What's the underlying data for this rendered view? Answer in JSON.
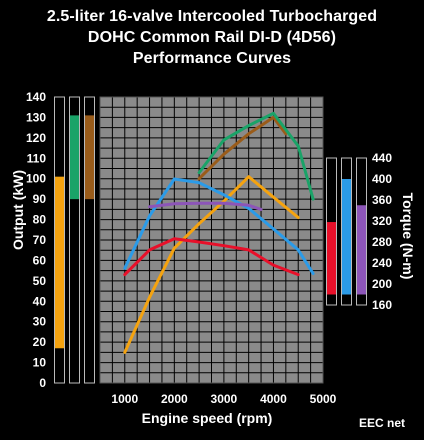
{
  "title": {
    "line1": "2.5-liter 16-valve Intercooled Turbocharged",
    "line2": "DOHC Common Rail DI-D (4D56)",
    "line3": "Performance Curves"
  },
  "note": "EEC net",
  "chart_data": {
    "type": "line",
    "title": "2.5-liter 16-valve Intercooled Turbocharged DOHC Common Rail DI-D (4D56) Performance Curves",
    "xlabel": "Engine speed (rpm)",
    "ylabel_left": "Output (kW)",
    "ylabel_right": "Torque (N-m)",
    "x_ticks": [
      1000,
      2000,
      3000,
      4000,
      5000
    ],
    "xlim": [
      500,
      5000
    ],
    "y_left_ticks": [
      0,
      10,
      20,
      30,
      40,
      50,
      60,
      70,
      80,
      90,
      100,
      110,
      120,
      130,
      140
    ],
    "ylim_left": [
      0,
      140
    ],
    "y_right_ticks": [
      160,
      200,
      240,
      280,
      320,
      360,
      400,
      440
    ],
    "ylim_right": [
      160,
      440
    ],
    "grid": true,
    "output_series": [
      {
        "color": "#f5a30f",
        "x": [
          1000,
          1500,
          2000,
          2500,
          3000,
          3500,
          4000,
          4500
        ],
        "y": [
          15,
          42,
          66,
          78,
          89,
          101,
          91,
          81
        ]
      },
      {
        "color": "#9a5c1a",
        "x": [
          2500,
          3000,
          3500,
          4000,
          4250
        ],
        "y": [
          100,
          112,
          122,
          130,
          122
        ]
      },
      {
        "color": "#1aa368",
        "x": [
          2500,
          3000,
          3500,
          4000,
          4500,
          4800
        ],
        "y": [
          103,
          119,
          126,
          132,
          116,
          90
        ]
      }
    ],
    "torque_series": [
      {
        "color": "#e8102a",
        "x": [
          1000,
          1500,
          2000,
          2500,
          3000,
          3500,
          4000,
          4500
        ],
        "y": [
          218,
          265,
          286,
          280,
          273,
          265,
          236,
          218
        ]
      },
      {
        "color": "#2b9be8",
        "x": [
          1000,
          1500,
          2000,
          2500,
          3000,
          3500,
          4000,
          4500,
          4800
        ],
        "y": [
          230,
          330,
          400,
          393,
          370,
          344,
          305,
          265,
          220
        ]
      },
      {
        "color": "#8c55b8",
        "x": [
          1500,
          2000,
          2500,
          3000,
          3500,
          3750
        ],
        "y": [
          347,
          353,
          354,
          354,
          350,
          342
        ]
      }
    ],
    "output_bars": [
      {
        "color": "#f5a30f",
        "min": 17,
        "max": 101
      },
      {
        "color": "#1aa368",
        "min": 90,
        "max": 131
      },
      {
        "color": "#9a5c1a",
        "min": 90,
        "max": 131
      }
    ],
    "torque_bars": [
      {
        "color": "#e8102a",
        "min": 180,
        "max": 318
      },
      {
        "color": "#2b9be8",
        "min": 180,
        "max": 400
      },
      {
        "color": "#8c55b8",
        "min": 180,
        "max": 350
      }
    ]
  }
}
